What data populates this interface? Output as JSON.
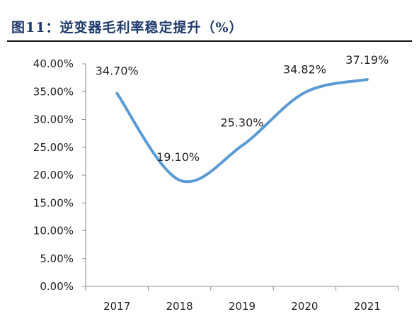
{
  "title": "图11：逆变器毛利率稳定提升（%）",
  "chart_data": {
    "type": "line",
    "title": "图11：逆变器毛利率稳定提升（%）",
    "categories": [
      "2017",
      "2018",
      "2019",
      "2020",
      "2021"
    ],
    "series": [
      {
        "values": [
          34.7,
          19.1,
          25.3,
          34.82,
          37.19
        ],
        "labels": [
          "34.70%",
          "19.10%",
          "25.30%",
          "34.82%",
          "37.19%"
        ],
        "color": "#5b9bd5"
      }
    ],
    "ylim": [
      0,
      40
    ],
    "yticks": [
      "0.00%",
      "5.00%",
      "10.00%",
      "15.00%",
      "20.00%",
      "25.00%",
      "30.00%",
      "35.00%",
      "40.00%"
    ],
    "grid": false,
    "legend": "none",
    "smooth": true
  }
}
